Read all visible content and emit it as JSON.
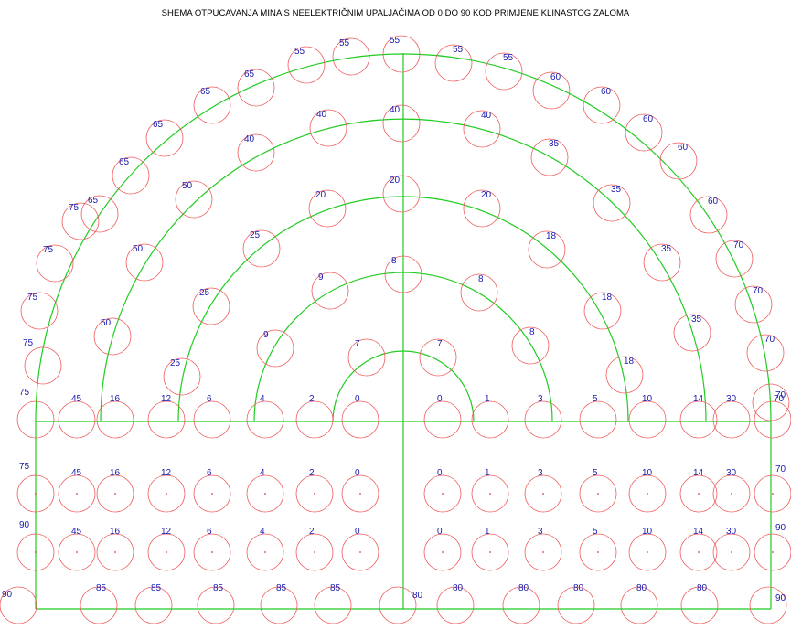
{
  "title": "SHEMA OTPUCAVANJA MINA S NEELEKTRIČNIM UPALJAČIMA OD 0 DO 90 KOD PRIMJENE KLINASTOG ZALOMA",
  "colors": {
    "geometry": "#22cc22",
    "hole_circle": "#ef5a5a",
    "label": "#1a1ab0",
    "background": "#ffffff"
  },
  "holes": {
    "outer_arc": [
      {
        "delay": "75"
      },
      {
        "delay": "75"
      },
      {
        "delay": "75"
      },
      {
        "delay": "75"
      },
      {
        "delay": "65"
      },
      {
        "delay": "65"
      },
      {
        "delay": "65"
      },
      {
        "delay": "65"
      },
      {
        "delay": "65"
      },
      {
        "delay": "55"
      },
      {
        "delay": "55"
      },
      {
        "delay": "55"
      },
      {
        "delay": "55"
      },
      {
        "delay": "55"
      },
      {
        "delay": "60"
      },
      {
        "delay": "60"
      },
      {
        "delay": "60"
      },
      {
        "delay": "60"
      },
      {
        "delay": "60"
      },
      {
        "delay": "70"
      },
      {
        "delay": "70"
      },
      {
        "delay": "70"
      },
      {
        "delay": "70"
      }
    ],
    "arc_3": [
      {
        "delay": "50"
      },
      {
        "delay": "50"
      },
      {
        "delay": "50"
      },
      {
        "delay": "40"
      },
      {
        "delay": "40"
      },
      {
        "delay": "40"
      },
      {
        "delay": "40"
      },
      {
        "delay": "35"
      },
      {
        "delay": "35"
      },
      {
        "delay": "35"
      },
      {
        "delay": "35"
      }
    ],
    "arc_2": [
      {
        "delay": "25"
      },
      {
        "delay": "25"
      },
      {
        "delay": "25"
      },
      {
        "delay": "20"
      },
      {
        "delay": "20"
      },
      {
        "delay": "20"
      },
      {
        "delay": "18"
      },
      {
        "delay": "18"
      },
      {
        "delay": "18"
      }
    ],
    "arc_1": [
      {
        "delay": "9"
      },
      {
        "delay": "9"
      },
      {
        "delay": "8"
      },
      {
        "delay": "8"
      },
      {
        "delay": "8"
      }
    ],
    "cut": [
      {
        "delay": "7"
      },
      {
        "delay": "7"
      }
    ],
    "springline_row": [
      {
        "delay": "75"
      },
      {
        "delay": "45"
      },
      {
        "delay": "16"
      },
      {
        "delay": "12"
      },
      {
        "delay": "6"
      },
      {
        "delay": "4"
      },
      {
        "delay": "2"
      },
      {
        "delay": "0"
      },
      {
        "delay": "0"
      },
      {
        "delay": "1"
      },
      {
        "delay": "3"
      },
      {
        "delay": "5"
      },
      {
        "delay": "10"
      },
      {
        "delay": "14"
      },
      {
        "delay": "30"
      },
      {
        "delay": "70"
      }
    ],
    "wall_row_1": [
      {
        "delay": "75"
      },
      {
        "delay": "45"
      },
      {
        "delay": "16"
      },
      {
        "delay": "12"
      },
      {
        "delay": "6"
      },
      {
        "delay": "4"
      },
      {
        "delay": "2"
      },
      {
        "delay": "0"
      },
      {
        "delay": "0"
      },
      {
        "delay": "1"
      },
      {
        "delay": "3"
      },
      {
        "delay": "5"
      },
      {
        "delay": "10"
      },
      {
        "delay": "14"
      },
      {
        "delay": "30"
      },
      {
        "delay": "70"
      }
    ],
    "wall_row_2": [
      {
        "delay": "90"
      },
      {
        "delay": "45"
      },
      {
        "delay": "16"
      },
      {
        "delay": "12"
      },
      {
        "delay": "6"
      },
      {
        "delay": "4"
      },
      {
        "delay": "2"
      },
      {
        "delay": "0"
      },
      {
        "delay": "0"
      },
      {
        "delay": "1"
      },
      {
        "delay": "3"
      },
      {
        "delay": "5"
      },
      {
        "delay": "10"
      },
      {
        "delay": "14"
      },
      {
        "delay": "30"
      },
      {
        "delay": "90"
      }
    ],
    "floor_row": [
      {
        "delay": "90"
      },
      {
        "delay": "85"
      },
      {
        "delay": "85"
      },
      {
        "delay": "85"
      },
      {
        "delay": "85"
      },
      {
        "delay": "85"
      },
      {
        "delay": "80"
      },
      {
        "delay": "80"
      },
      {
        "delay": "80"
      },
      {
        "delay": "80"
      },
      {
        "delay": "80"
      },
      {
        "delay": "80"
      },
      {
        "delay": "90"
      }
    ]
  }
}
